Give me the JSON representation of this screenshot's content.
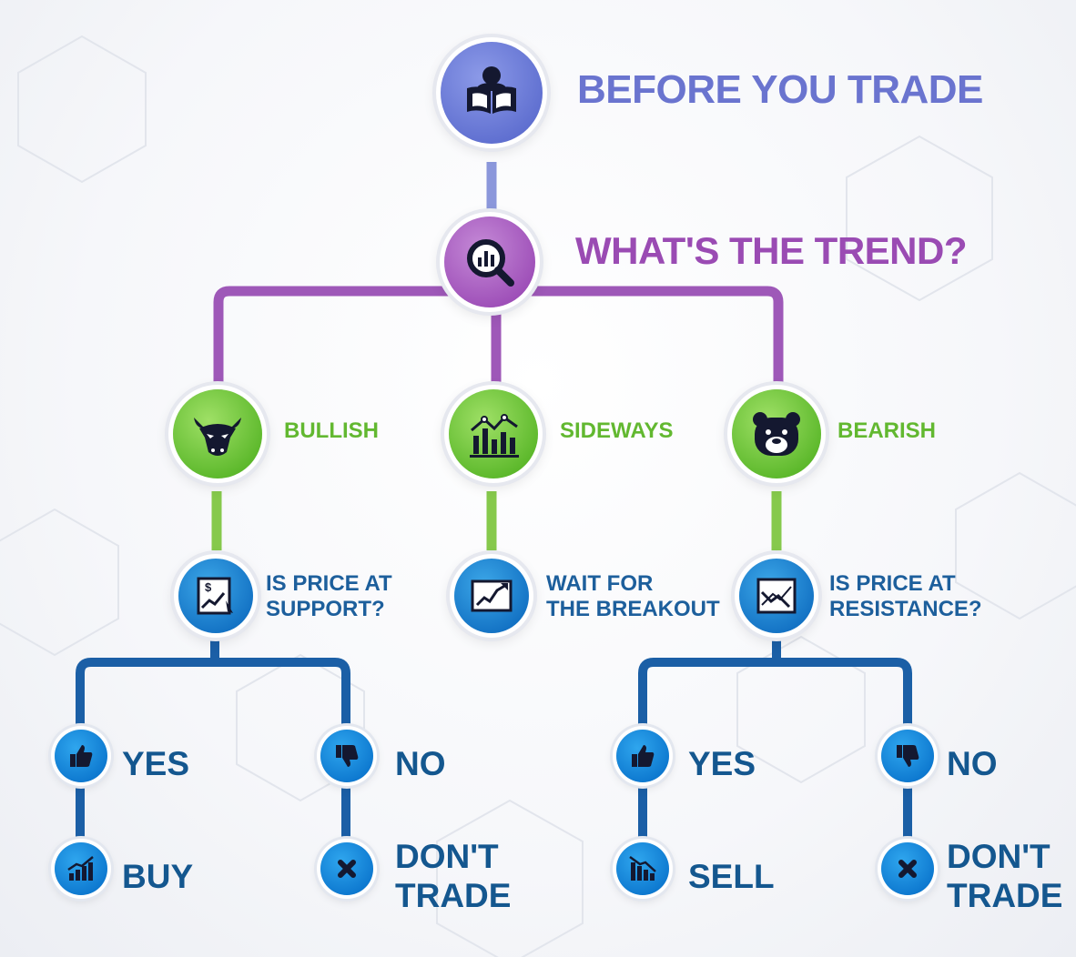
{
  "title": "BEFORE YOU TRADE",
  "question": "WHAT'S THE TREND?",
  "trends": {
    "bullish": "BULLISH",
    "sideways": "SIDEWAYS",
    "bearish": "BEARISH"
  },
  "steps": {
    "support": [
      "IS PRICE AT",
      "SUPPORT?"
    ],
    "breakout": [
      "WAIT FOR",
      "THE BREAKOUT"
    ],
    "resistance": [
      "IS PRICE AT",
      "RESISTANCE?"
    ]
  },
  "bull_branch": {
    "yes": "YES",
    "no": "NO",
    "yes_action": "BUY",
    "no_action": [
      "DON'T",
      "TRADE"
    ]
  },
  "bear_branch": {
    "yes": "YES",
    "no": "NO",
    "yes_action": "SELL",
    "no_action": [
      "DON'T",
      "TRADE"
    ]
  },
  "colors": {
    "title": "#6a74cf",
    "question": "#9a4bb3",
    "trend": "#62b830",
    "decision": "#1d5f9c",
    "connector_top": "#8b97db",
    "connector_purple": "#9e58b8",
    "connector_green": "#86c94c",
    "connector_blue": "#1b5fa6"
  },
  "icons": {
    "title": "reader-book-icon",
    "question": "chart-magnifier-icon",
    "bullish": "bull-head-icon",
    "sideways": "sideways-chart-icon",
    "bearish": "bear-head-icon",
    "support": "price-chart-dollar-icon",
    "breakout": "breakout-chart-icon",
    "resistance": "resistance-chart-icon",
    "yes": "thumbs-up-icon",
    "no": "thumbs-down-icon",
    "buy": "rising-bars-icon",
    "sell": "falling-bars-icon",
    "dont_trade": "x-mark-icon"
  }
}
